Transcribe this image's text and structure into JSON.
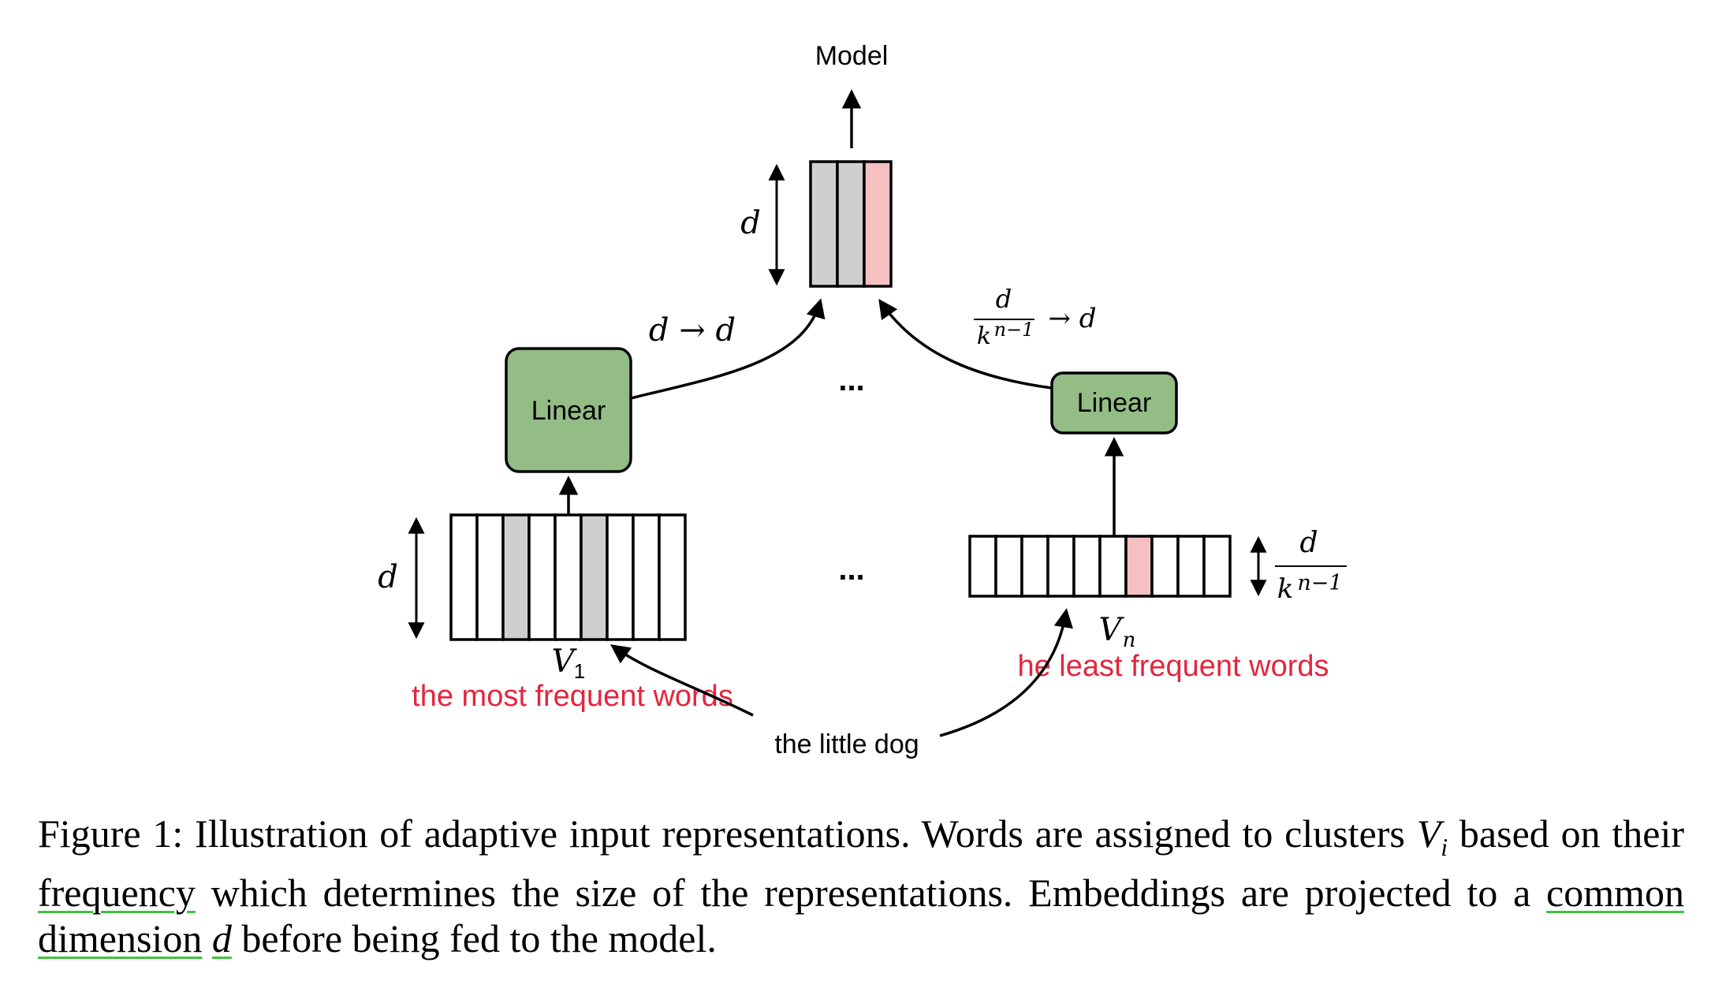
{
  "diagram": {
    "model_label": "Model",
    "linear_left_label": "Linear",
    "linear_right_label": "Linear",
    "dim_output": "d",
    "dim_left_embedding": "d",
    "proj_left": "d → d",
    "proj_right_num": "d",
    "proj_right_den_base": "k",
    "proj_right_den_exp": "n−1",
    "proj_right_arrow": "→ d",
    "right_embed_dim_num": "d",
    "right_embed_dim_den_base": "k",
    "right_embed_dim_den_exp": "n−1",
    "ellipsis_top": "...",
    "ellipsis_bottom": "...",
    "cluster_left": "V",
    "cluster_left_sub": "1",
    "cluster_right": "V",
    "cluster_right_sub": "n",
    "left_annotation": "the most frequent words",
    "right_annotation": "he least frequent words",
    "input_text": "the little dog",
    "colors": {
      "linear_fill": "#93bd85",
      "cell_gray": "#cfcfcf",
      "cell_pink": "#f5c0c0",
      "annotation_red": "#e3263e",
      "underline_green": "#3ec43e"
    }
  },
  "caption": {
    "prefix": "Figure 1: Illustration of adaptive input representations. Words are assigned to clusters ",
    "cluster_symbol": "V",
    "cluster_sub": "i",
    "part2": " based on their ",
    "underlined1": "frequency",
    "part3": " which determines the size of the representations. Embeddings are projected to a ",
    "underlined2": "common dimension",
    "space": " ",
    "underlined3": "d",
    "part4": " before being fed to the model."
  }
}
